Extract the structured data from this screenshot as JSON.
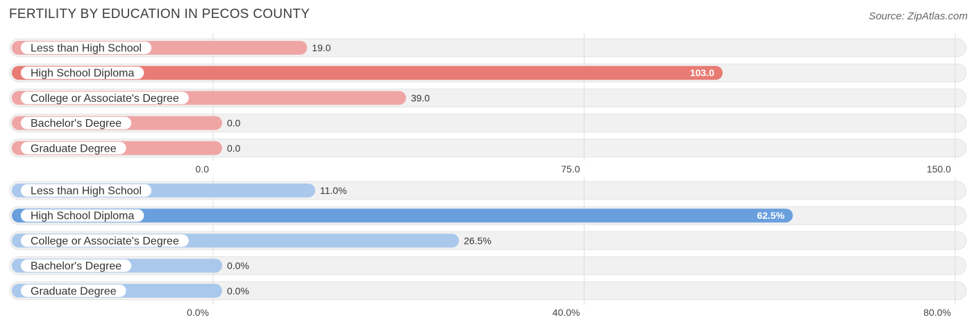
{
  "header": {
    "title": "FERTILITY BY EDUCATION IN PECOS COUNTY",
    "source": "Source: ZipAtlas.com"
  },
  "colors": {
    "top_bar": "#f0a5a5",
    "top_bar_highlight": "#e87b73",
    "bottom_bar": "#a9c8ec",
    "bottom_bar_highlight": "#6a9fde",
    "row_background": "#f1f1f1",
    "grid": "#dddddd"
  },
  "chart_data": [
    {
      "type": "bar",
      "orientation": "horizontal",
      "categories": [
        "Less than High School",
        "High School Diploma",
        "College or Associate's Degree",
        "Bachelor's Degree",
        "Graduate Degree"
      ],
      "values": [
        19.0,
        103.0,
        39.0,
        0.0,
        0.0
      ],
      "value_labels": [
        "19.0",
        "103.0",
        "39.0",
        "0.0",
        "0.0"
      ],
      "highlight_index": 1,
      "xlim": [
        0,
        150
      ],
      "ticks": [
        0,
        75,
        150
      ],
      "tick_labels": [
        "0.0",
        "75.0",
        "150.0"
      ],
      "grid": true
    },
    {
      "type": "bar",
      "orientation": "horizontal",
      "categories": [
        "Less than High School",
        "High School Diploma",
        "College or Associate's Degree",
        "Bachelor's Degree",
        "Graduate Degree"
      ],
      "values": [
        11.0,
        62.5,
        26.5,
        0.0,
        0.0
      ],
      "value_labels": [
        "11.0%",
        "62.5%",
        "26.5%",
        "0.0%",
        "0.0%"
      ],
      "highlight_index": 1,
      "xlim": [
        0,
        80
      ],
      "ticks": [
        0,
        40,
        80
      ],
      "tick_labels": [
        "0.0%",
        "40.0%",
        "80.0%"
      ],
      "grid": true
    }
  ]
}
